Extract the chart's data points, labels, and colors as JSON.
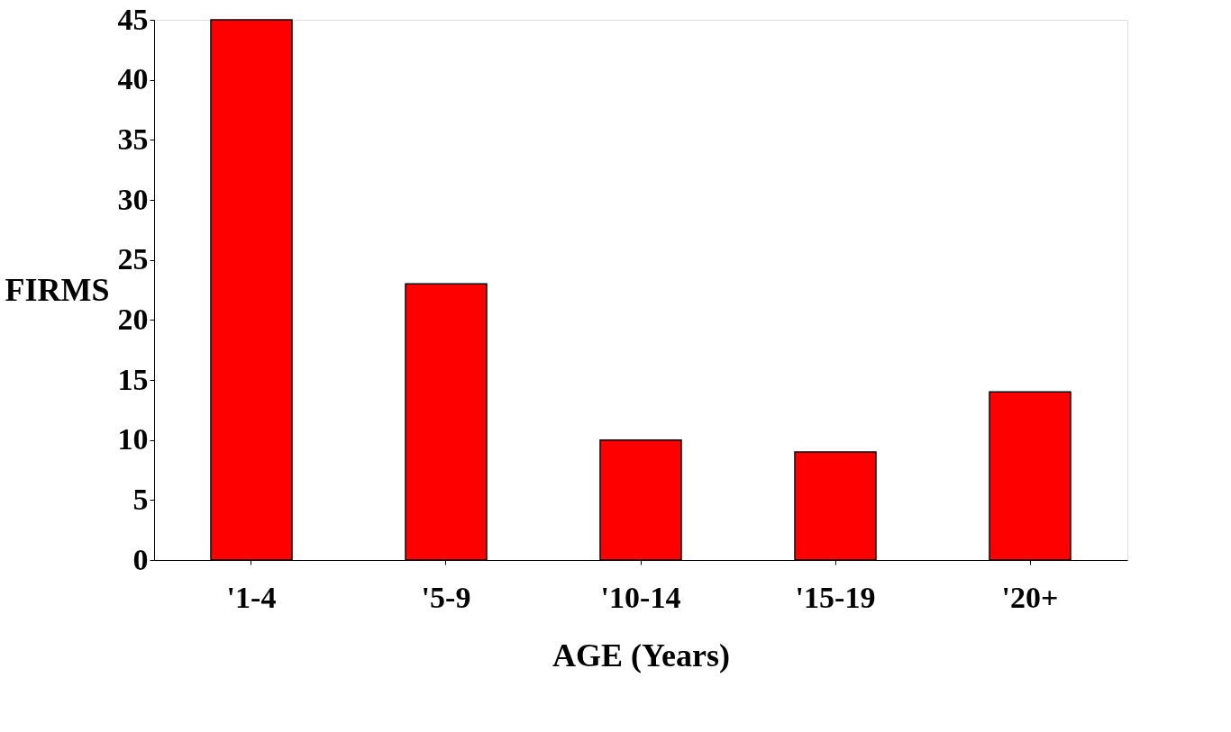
{
  "chart_data": {
    "type": "bar",
    "xlabel": "AGE (Years)",
    "ylabel": "FIRMS",
    "categories": [
      "'1-4",
      "'5-9",
      "'10-14",
      "'15-19",
      "'20+"
    ],
    "values": [
      45,
      23,
      10,
      9,
      14
    ],
    "color": "#ff0000",
    "ylim": [
      0,
      45
    ],
    "yticks": [
      0,
      5,
      10,
      15,
      20,
      25,
      30,
      35,
      40,
      45
    ],
    "grid": false
  }
}
